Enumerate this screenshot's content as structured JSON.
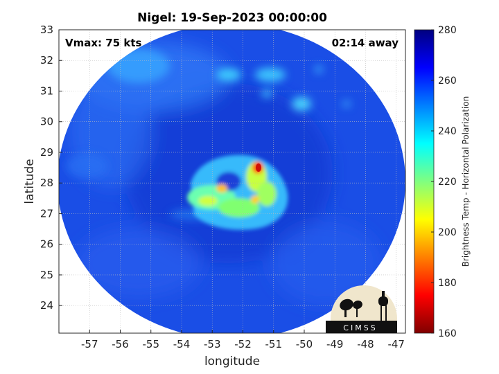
{
  "chart_data": {
    "type": "heatmap",
    "title": "Nigel: 19-Sep-2023 00:00:00",
    "xlabel": "longitude",
    "ylabel": "latitude",
    "xlim": [
      -58,
      -46.7
    ],
    "ylim": [
      23.1,
      33
    ],
    "xticks": [
      -57,
      -56,
      -55,
      -54,
      -53,
      -52,
      -51,
      -50,
      -49,
      -48,
      -47
    ],
    "yticks": [
      24,
      25,
      26,
      27,
      28,
      29,
      30,
      31,
      32,
      33
    ],
    "grid": true,
    "colorbar": {
      "label": "Brightness Temp - Horizontal Polarization",
      "range": [
        160,
        280
      ],
      "ticks": [
        160,
        180,
        200,
        220,
        240,
        260,
        280
      ],
      "colormap": "jet"
    },
    "annotations": {
      "vmax": "Vmax: 75 kts",
      "time_offset": "02:14 away"
    },
    "storm_center": {
      "lon": -52.5,
      "lat": 28.2
    },
    "coldest_spots": [
      {
        "lon": -51.5,
        "lat": 28.5,
        "value": 168
      },
      {
        "lon": -52.8,
        "lat": 27.8,
        "value": 195
      },
      {
        "lon": -51.6,
        "lat": 27.3,
        "value": 200
      }
    ],
    "background_value": 262
  },
  "logo": {
    "text": "CIMSS"
  }
}
